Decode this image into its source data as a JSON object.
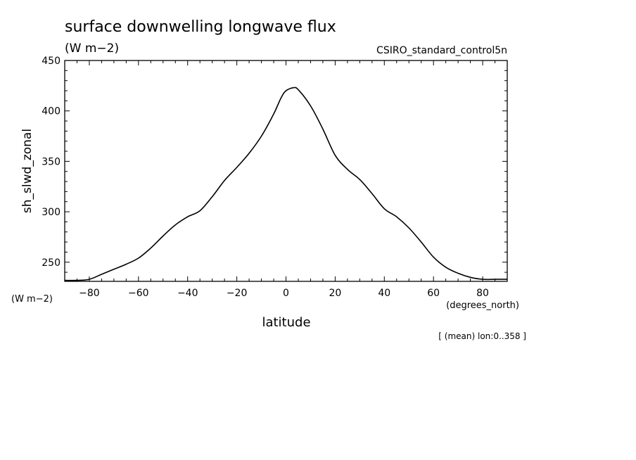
{
  "chart_data": {
    "type": "line",
    "title": "surface downwelling longwave flux",
    "units": "(W m−2)",
    "source": "CSIRO_standard_control5n",
    "ylabel": "sh_slwd_zonal",
    "yunits": "(W m−2)",
    "xlabel": "latitude",
    "xunits": "(degrees_north)",
    "footnote": "[ (mean) lon:0..358 ]",
    "xlim": [
      -90,
      90
    ],
    "ylim": [
      231,
      450
    ],
    "xticks": [
      -80,
      -60,
      -40,
      -20,
      0,
      20,
      40,
      60,
      80
    ],
    "yticks": [
      250,
      300,
      350,
      400,
      450
    ],
    "grid": false,
    "series": [
      {
        "x": [
          -90,
          -85,
          -80,
          -75,
          -70,
          -65,
          -60,
          -55,
          -50,
          -45,
          -40,
          -35,
          -30,
          -25,
          -20,
          -15,
          -10,
          -5,
          -2,
          0,
          3,
          5,
          10,
          15,
          20,
          25,
          30,
          35,
          40,
          45,
          50,
          55,
          60,
          65,
          70,
          75,
          80,
          85,
          90
        ],
        "y": [
          232,
          232,
          233,
          238,
          243,
          248,
          254,
          264,
          276,
          287,
          295,
          301,
          315,
          331,
          344,
          358,
          375,
          397,
          413,
          420,
          423,
          421,
          405,
          382,
          356,
          342,
          332,
          318,
          303,
          295,
          284,
          270,
          255,
          245,
          239,
          235,
          233,
          233,
          233
        ]
      }
    ]
  }
}
